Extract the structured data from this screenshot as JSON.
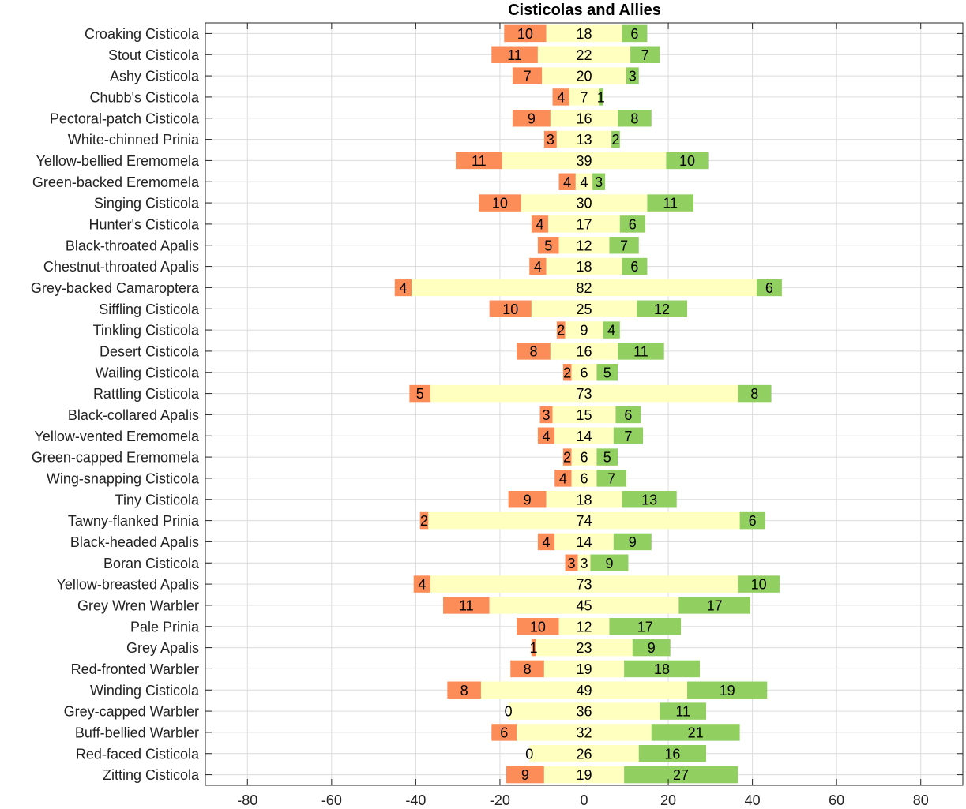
{
  "chart_data": {
    "type": "bar",
    "orientation": "horizontal",
    "stacking": "diverging",
    "title": "Cisticolas and Allies",
    "xlabel": "",
    "ylabel": "",
    "xlim": [
      -90,
      90
    ],
    "xticks": [
      -80,
      -60,
      -40,
      -20,
      0,
      20,
      40,
      60,
      80
    ],
    "grid": true,
    "colors": {
      "left": "#fc8d59",
      "middle": "#ffffbf",
      "right": "#91cf60"
    },
    "categories": [
      "Croaking Cisticola",
      "Stout Cisticola",
      "Ashy Cisticola",
      "Chubb's Cisticola",
      "Pectoral-patch Cisticola",
      "White-chinned Prinia",
      "Yellow-bellied Eremomela",
      "Green-backed Eremomela",
      "Singing Cisticola",
      "Hunter's Cisticola",
      "Black-throated Apalis",
      "Chestnut-throated Apalis",
      "Grey-backed Camaroptera",
      "Siffling Cisticola",
      "Tinkling Cisticola",
      "Desert Cisticola",
      "Wailing Cisticola",
      "Rattling Cisticola",
      "Black-collared Apalis",
      "Yellow-vented Eremomela",
      "Green-capped Eremomela",
      "Wing-snapping Cisticola",
      "Tiny Cisticola",
      "Tawny-flanked Prinia",
      "Black-headed Apalis",
      "Boran Cisticola",
      "Yellow-breasted Apalis",
      "Grey Wren Warbler",
      "Pale Prinia",
      "Grey Apalis",
      "Red-fronted Warbler",
      "Winding Cisticola",
      "Grey-capped Warbler",
      "Buff-bellied Warbler",
      "Red-faced Cisticola",
      "Zitting Cisticola"
    ],
    "series": [
      {
        "values": [
          10,
          11,
          7,
          4,
          9,
          3,
          11,
          4,
          10,
          4,
          5,
          4,
          4,
          10,
          2,
          8,
          2,
          5,
          3,
          4,
          2,
          4,
          9,
          2,
          4,
          3,
          4,
          11,
          10,
          1,
          8,
          8,
          0,
          6,
          0,
          9
        ]
      },
      {
        "values": [
          18,
          22,
          20,
          7,
          16,
          13,
          39,
          4,
          30,
          17,
          12,
          18,
          82,
          25,
          9,
          16,
          6,
          73,
          15,
          14,
          6,
          6,
          18,
          74,
          14,
          3,
          73,
          45,
          12,
          23,
          19,
          49,
          36,
          32,
          26,
          19
        ]
      },
      {
        "values": [
          6,
          7,
          3,
          1,
          8,
          2,
          10,
          3,
          11,
          6,
          7,
          6,
          6,
          12,
          4,
          11,
          5,
          8,
          6,
          7,
          5,
          7,
          13,
          6,
          9,
          9,
          10,
          17,
          17,
          9,
          18,
          19,
          11,
          21,
          16,
          27
        ]
      }
    ]
  }
}
